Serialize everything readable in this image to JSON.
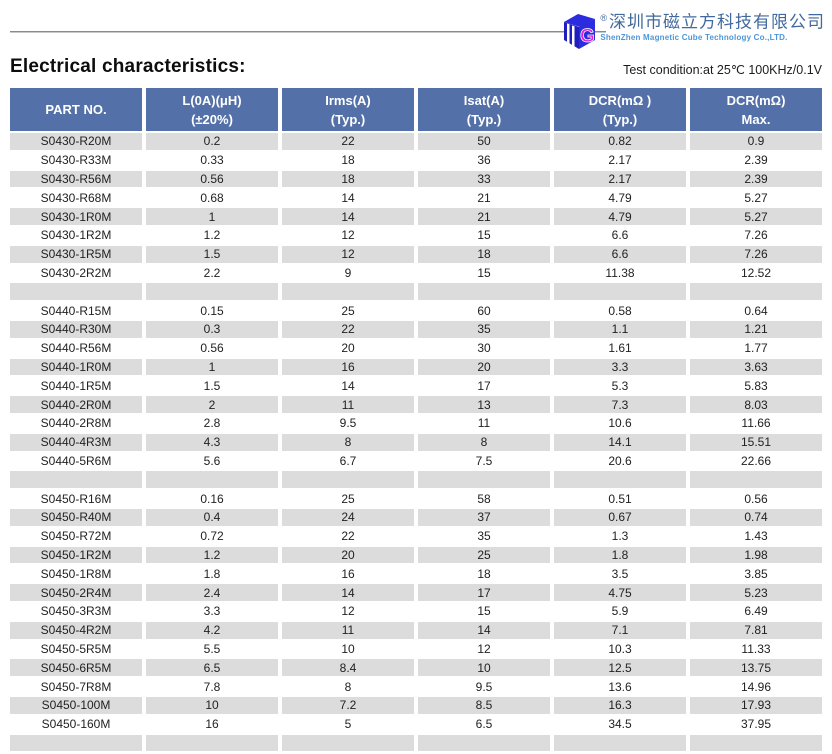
{
  "brand": {
    "registered_mark": "®",
    "company_cn": "深圳市磁立方科技有限公司",
    "company_en": "ShenZhen Magnetic Cube Technology Co.,LTD.",
    "monogram": "G"
  },
  "page": {
    "title": "Electrical characteristics:",
    "test_condition": "Test condition:at 25℃ 100KHz/0.1V"
  },
  "table": {
    "field_names": [
      "part-no",
      "inductance",
      "irms",
      "isat",
      "dcr-typ",
      "dcr-max"
    ],
    "headers": [
      {
        "line1": "PART NO.",
        "line2": ""
      },
      {
        "line1": "L(0A)(μH)",
        "line2": "(±20%)"
      },
      {
        "line1": "Irms(A)",
        "line2": "(Typ.)"
      },
      {
        "line1": "Isat(A)",
        "line2": "(Typ.)"
      },
      {
        "line1": "DCR(mΩ )",
        "line2": "(Typ.)"
      },
      {
        "line1": "DCR(mΩ)",
        "line2": "Max."
      }
    ],
    "rows": [
      {
        "cells": [
          "S0430-R20M",
          "0.2",
          "22",
          "50",
          "0.82",
          "0.9"
        ]
      },
      {
        "cells": [
          "S0430-R33M",
          "0.33",
          "18",
          "36",
          "2.17",
          "2.39"
        ]
      },
      {
        "cells": [
          "S0430-R56M",
          "0.56",
          "18",
          "33",
          "2.17",
          "2.39"
        ]
      },
      {
        "cells": [
          "S0430-R68M",
          "0.68",
          "14",
          "21",
          "4.79",
          "5.27"
        ]
      },
      {
        "cells": [
          "S0430-1R0M",
          "1",
          "14",
          "21",
          "4.79",
          "5.27"
        ]
      },
      {
        "cells": [
          "S0430-1R2M",
          "1.2",
          "12",
          "15",
          "6.6",
          "7.26"
        ]
      },
      {
        "cells": [
          "S0430-1R5M",
          "1.5",
          "12",
          "18",
          "6.6",
          "7.26"
        ]
      },
      {
        "cells": [
          "S0430-2R2M",
          "2.2",
          "9",
          "15",
          "11.38",
          "12.52"
        ]
      },
      {
        "spacer": true
      },
      {
        "cells": [
          "S0440-R15M",
          "0.15",
          "25",
          "60",
          "0.58",
          "0.64"
        ]
      },
      {
        "cells": [
          "S0440-R30M",
          "0.3",
          "22",
          "35",
          "1.1",
          "1.21"
        ]
      },
      {
        "cells": [
          "S0440-R56M",
          "0.56",
          "20",
          "30",
          "1.61",
          "1.77"
        ]
      },
      {
        "cells": [
          "S0440-1R0M",
          "1",
          "16",
          "20",
          "3.3",
          "3.63"
        ]
      },
      {
        "cells": [
          "S0440-1R5M",
          "1.5",
          "14",
          "17",
          "5.3",
          "5.83"
        ]
      },
      {
        "cells": [
          "S0440-2R0M",
          "2",
          "11",
          "13",
          "7.3",
          "8.03"
        ]
      },
      {
        "cells": [
          "S0440-2R8M",
          "2.8",
          "9.5",
          "11",
          "10.6",
          "11.66"
        ]
      },
      {
        "cells": [
          "S0440-4R3M",
          "4.3",
          "8",
          "8",
          "14.1",
          "15.51"
        ]
      },
      {
        "cells": [
          "S0440-5R6M",
          "5.6",
          "6.7",
          "7.5",
          "20.6",
          "22.66"
        ]
      },
      {
        "spacer": true
      },
      {
        "cells": [
          "S0450-R16M",
          "0.16",
          "25",
          "58",
          "0.51",
          "0.56"
        ]
      },
      {
        "cells": [
          "S0450-R40M",
          "0.4",
          "24",
          "37",
          "0.67",
          "0.74"
        ]
      },
      {
        "cells": [
          "S0450-R72M",
          "0.72",
          "22",
          "35",
          "1.3",
          "1.43"
        ]
      },
      {
        "cells": [
          "S0450-1R2M",
          "1.2",
          "20",
          "25",
          "1.8",
          "1.98"
        ]
      },
      {
        "cells": [
          "S0450-1R8M",
          "1.8",
          "16",
          "18",
          "3.5",
          "3.85"
        ]
      },
      {
        "cells": [
          "S0450-2R4M",
          "2.4",
          "14",
          "17",
          "4.75",
          "5.23"
        ]
      },
      {
        "cells": [
          "S0450-3R3M",
          "3.3",
          "12",
          "15",
          "5.9",
          "6.49"
        ]
      },
      {
        "cells": [
          "S0450-4R2M",
          "4.2",
          "11",
          "14",
          "7.1",
          "7.81"
        ]
      },
      {
        "cells": [
          "S0450-5R5M",
          "5.5",
          "10",
          "12",
          "10.3",
          "11.33"
        ]
      },
      {
        "cells": [
          "S0450-6R5M",
          "6.5",
          "8.4",
          "10",
          "12.5",
          "13.75"
        ]
      },
      {
        "cells": [
          "S0450-7R8M",
          "7.8",
          "8",
          "9.5",
          "13.6",
          "14.96"
        ]
      },
      {
        "cells": [
          "S0450-100M",
          "10",
          "7.2",
          "8.5",
          "16.3",
          "17.93"
        ]
      },
      {
        "cells": [
          "S0450-160M",
          "16",
          "5",
          "6.5",
          "34.5",
          "37.95"
        ]
      },
      {
        "spacer": true
      }
    ]
  },
  "colors": {
    "header_bg": "#5470a8",
    "row_alt": "#dcdcdc",
    "logo_cn": "#41699e",
    "logo_en": "#4e96d9",
    "cube_blue": "#2b2bdf",
    "cube_magenta": "#e020d8",
    "rule": "#8a8a8a"
  }
}
